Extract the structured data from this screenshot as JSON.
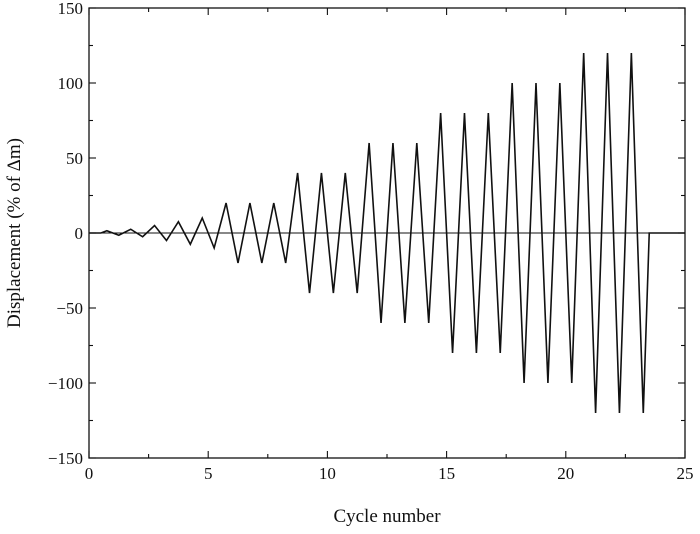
{
  "chart_data": {
    "type": "line",
    "title": "",
    "xlabel": "Cycle number",
    "ylabel": "Displacement (% of Δm)",
    "xlim": [
      0,
      25
    ],
    "ylim": [
      -150,
      150
    ],
    "xticks": [
      0,
      5,
      10,
      15,
      20,
      25
    ],
    "yticks": [
      150,
      100,
      50,
      0,
      -50,
      -100,
      -150
    ],
    "xtick_labels": [
      "0",
      "5",
      "10",
      "15",
      "20",
      "25"
    ],
    "ytick_labels": [
      "150",
      "100",
      "50",
      "0",
      "−50",
      "−100",
      "−150"
    ],
    "zero_line": true,
    "grid": false,
    "series": [
      {
        "line_color": "#111111",
        "cycle_start": 0.5,
        "cycle_period": 1.0,
        "end_x": 23.5,
        "cycle_amplitudes": [
          1.5,
          2.5,
          5,
          7.5,
          10,
          20,
          20,
          20,
          40,
          40,
          40,
          60,
          60,
          60,
          80,
          80,
          80,
          100,
          100,
          100,
          120,
          120,
          120
        ]
      }
    ]
  }
}
